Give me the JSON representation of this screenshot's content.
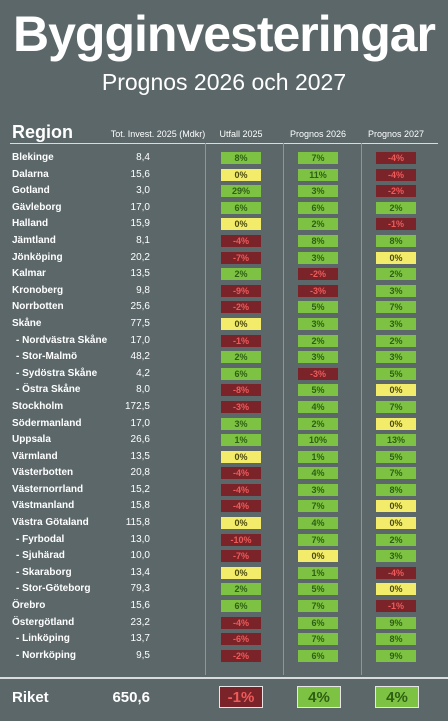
{
  "title": "Bygginvesteringar",
  "subtitle": "Prognos 2026 och 2027",
  "headers": {
    "region": "Region",
    "investment": "Tot. Invest. 2025 (Mdkr)",
    "outcome": "Utfall 2025",
    "forecast2026": "Prognos 2026",
    "forecast2027": "Prognos 2027"
  },
  "rows": [
    {
      "name": "Blekinge",
      "inv": "8,4",
      "u": "8%",
      "p26": "7%",
      "p27": "-4%",
      "sub": false
    },
    {
      "name": "Dalarna",
      "inv": "15,6",
      "u": "0%",
      "p26": "11%",
      "p27": "-4%",
      "sub": false
    },
    {
      "name": "Gotland",
      "inv": "3,0",
      "u": "29%",
      "p26": "3%",
      "p27": "-2%",
      "sub": false
    },
    {
      "name": "Gävleborg",
      "inv": "17,0",
      "u": "6%",
      "p26": "6%",
      "p27": "2%",
      "sub": false
    },
    {
      "name": "Halland",
      "inv": "15,9",
      "u": "0%",
      "p26": "2%",
      "p27": "-1%",
      "sub": false
    },
    {
      "name": "Jämtland",
      "inv": "8,1",
      "u": "-4%",
      "p26": "8%",
      "p27": "8%",
      "sub": false
    },
    {
      "name": "Jönköping",
      "inv": "20,2",
      "u": "-7%",
      "p26": "3%",
      "p27": "0%",
      "sub": false
    },
    {
      "name": "Kalmar",
      "inv": "13,5",
      "u": "2%",
      "p26": "-2%",
      "p27": "2%",
      "sub": false
    },
    {
      "name": "Kronoberg",
      "inv": "9,8",
      "u": "-9%",
      "p26": "-3%",
      "p27": "3%",
      "sub": false
    },
    {
      "name": "Norrbotten",
      "inv": "25,6",
      "u": "-2%",
      "p26": "5%",
      "p27": "7%",
      "sub": false
    },
    {
      "name": "Skåne",
      "inv": "77,5",
      "u": "0%",
      "p26": "3%",
      "p27": "3%",
      "sub": false
    },
    {
      "name": "- Nordvästra Skåne",
      "inv": "17,0",
      "u": "-1%",
      "p26": "2%",
      "p27": "2%",
      "sub": true
    },
    {
      "name": "- Stor-Malmö",
      "inv": "48,2",
      "u": "2%",
      "p26": "3%",
      "p27": "3%",
      "sub": true
    },
    {
      "name": "- Sydöstra Skåne",
      "inv": "4,2",
      "u": "6%",
      "p26": "-3%",
      "p27": "5%",
      "sub": true
    },
    {
      "name": "- Östra Skåne",
      "inv": "8,0",
      "u": "-8%",
      "p26": "5%",
      "p27": "0%",
      "sub": true
    },
    {
      "name": "Stockholm",
      "inv": "172,5",
      "u": "-3%",
      "p26": "4%",
      "p27": "7%",
      "sub": false
    },
    {
      "name": "Södermanland",
      "inv": "17,0",
      "u": "3%",
      "p26": "2%",
      "p27": "0%",
      "sub": false
    },
    {
      "name": "Uppsala",
      "inv": "26,6",
      "u": "1%",
      "p26": "10%",
      "p27": "13%",
      "sub": false
    },
    {
      "name": "Värmland",
      "inv": "13,5",
      "u": "0%",
      "p26": "1%",
      "p27": "5%",
      "sub": false
    },
    {
      "name": "Västerbotten",
      "inv": "20,8",
      "u": "-4%",
      "p26": "4%",
      "p27": "7%",
      "sub": false
    },
    {
      "name": "Västernorrland",
      "inv": "15,2",
      "u": "-4%",
      "p26": "3%",
      "p27": "8%",
      "sub": false
    },
    {
      "name": "Västmanland",
      "inv": "15,8",
      "u": "-4%",
      "p26": "7%",
      "p27": "0%",
      "sub": false
    },
    {
      "name": "Västra Götaland",
      "inv": "115,8",
      "u": "0%",
      "p26": "4%",
      "p27": "0%",
      "sub": false
    },
    {
      "name": "- Fyrbodal",
      "inv": "13,0",
      "u": "-10%",
      "p26": "7%",
      "p27": "2%",
      "sub": true
    },
    {
      "name": "- Sjuhärad",
      "inv": "10,0",
      "u": "-7%",
      "p26": "0%",
      "p27": "3%",
      "sub": true
    },
    {
      "name": "- Skaraborg",
      "inv": "13,4",
      "u": "0%",
      "p26": "1%",
      "p27": "-4%",
      "sub": true
    },
    {
      "name": "- Stor-Göteborg",
      "inv": "79,3",
      "u": "2%",
      "p26": "5%",
      "p27": "0%",
      "sub": true
    },
    {
      "name": "Örebro",
      "inv": "15,6",
      "u": "6%",
      "p26": "7%",
      "p27": "-1%",
      "sub": false
    },
    {
      "name": "Östergötland",
      "inv": "23,2",
      "u": "-4%",
      "p26": "6%",
      "p27": "9%",
      "sub": false
    },
    {
      "name": "- Linköping",
      "inv": "13,7",
      "u": "-6%",
      "p26": "7%",
      "p27": "8%",
      "sub": true
    },
    {
      "name": "- Norrköping",
      "inv": "9,5",
      "u": "-2%",
      "p26": "6%",
      "p27": "9%",
      "sub": true
    }
  ],
  "total": {
    "name": "Riket",
    "inv": "650,6",
    "u": "-1%",
    "p26": "4%",
    "p27": "4%"
  },
  "colors": {
    "positive": "#7dc242",
    "zero": "#f2ec6a",
    "negative": "#7a2328",
    "background": "#5b6769"
  }
}
